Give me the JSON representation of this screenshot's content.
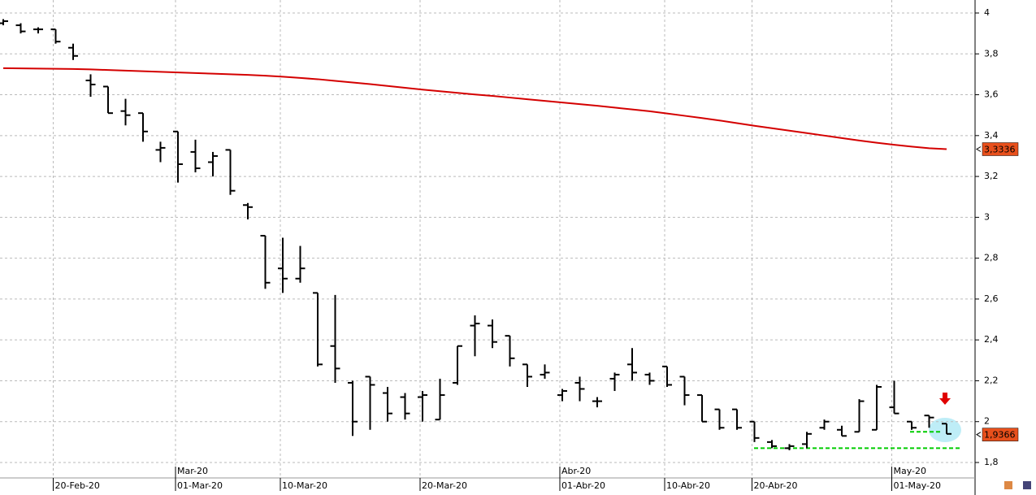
{
  "chart_data": {
    "type": "ohlc",
    "categories": [
      null,
      null,
      null,
      "20-Feb-20",
      null,
      null,
      null,
      null,
      null,
      null,
      "01-Mar-20",
      null,
      null,
      null,
      null,
      null,
      "10-Mar-20",
      null,
      null,
      null,
      null,
      null,
      null,
      null,
      "20-Mar-20",
      null,
      null,
      null,
      null,
      null,
      null,
      null,
      "01-Abr-20",
      null,
      null,
      null,
      null,
      null,
      "10-Abr-20",
      null,
      null,
      null,
      null,
      "20-Abr-20",
      null,
      null,
      null,
      null,
      null,
      null,
      null,
      "01-May-20",
      null,
      null,
      null
    ],
    "months": [
      null,
      null,
      null,
      null,
      null,
      null,
      null,
      null,
      null,
      null,
      "Mar-20",
      null,
      null,
      null,
      null,
      null,
      null,
      null,
      null,
      null,
      null,
      null,
      null,
      null,
      null,
      null,
      null,
      null,
      null,
      null,
      null,
      null,
      "Abr-20",
      null,
      null,
      null,
      null,
      null,
      null,
      null,
      null,
      null,
      null,
      null,
      null,
      null,
      null,
      null,
      null,
      null,
      null,
      "May-20",
      null,
      null,
      null
    ],
    "open": [
      3.95,
      3.94,
      3.92,
      3.92,
      3.83,
      3.67,
      3.64,
      3.52,
      3.51,
      3.33,
      3.42,
      3.32,
      3.27,
      3.33,
      3.06,
      2.91,
      2.75,
      2.7,
      2.63,
      2.37,
      2.19,
      2.22,
      2.14,
      2.12,
      2.12,
      2.01,
      2.19,
      2.47,
      2.47,
      2.42,
      2.28,
      2.23,
      2.13,
      2.19,
      2.1,
      2.21,
      2.28,
      2.23,
      2.27,
      2.22,
      2.13,
      2.06,
      2.06,
      2.0,
      1.9,
      1.87,
      1.89,
      1.97,
      1.96,
      1.95,
      1.96,
      2.07,
      2.0,
      2.03,
      1.99
    ],
    "high": [
      3.97,
      3.95,
      3.93,
      3.92,
      3.85,
      3.7,
      3.64,
      3.58,
      3.51,
      3.37,
      3.42,
      3.38,
      3.32,
      3.33,
      3.07,
      2.91,
      2.9,
      2.86,
      2.63,
      2.62,
      2.2,
      2.22,
      2.17,
      2.14,
      2.15,
      2.21,
      2.37,
      2.52,
      2.5,
      2.42,
      2.28,
      2.28,
      2.16,
      2.22,
      2.12,
      2.24,
      2.36,
      2.24,
      2.27,
      2.22,
      2.13,
      2.06,
      2.06,
      2.0,
      1.91,
      1.89,
      1.95,
      2.01,
      1.98,
      2.11,
      2.18,
      2.2,
      2.0,
      2.03,
      1.99
    ],
    "low": [
      3.94,
      3.9,
      3.9,
      3.85,
      3.77,
      3.59,
      3.51,
      3.45,
      3.37,
      3.27,
      3.17,
      3.22,
      3.2,
      3.11,
      2.99,
      2.65,
      2.63,
      2.68,
      2.27,
      2.19,
      1.93,
      1.96,
      2.0,
      2.01,
      2.0,
      2.01,
      2.18,
      2.32,
      2.36,
      2.27,
      2.17,
      2.21,
      2.1,
      2.1,
      2.07,
      2.15,
      2.2,
      2.18,
      2.17,
      2.08,
      2.0,
      1.96,
      1.96,
      1.9,
      1.87,
      1.86,
      1.87,
      1.96,
      1.93,
      1.95,
      1.96,
      2.04,
      1.96,
      1.97,
      1.94
    ],
    "close": [
      3.96,
      3.91,
      3.92,
      3.86,
      3.79,
      3.65,
      3.51,
      3.5,
      3.42,
      3.34,
      3.26,
      3.24,
      3.3,
      3.13,
      3.05,
      2.68,
      2.7,
      2.75,
      2.28,
      2.26,
      2.0,
      2.18,
      2.04,
      2.04,
      2.13,
      2.13,
      2.37,
      2.48,
      2.39,
      2.31,
      2.22,
      2.24,
      2.15,
      2.16,
      2.1,
      2.23,
      2.24,
      2.2,
      2.18,
      2.13,
      2.0,
      1.97,
      1.97,
      1.92,
      1.88,
      1.88,
      1.94,
      2.0,
      1.93,
      2.1,
      2.17,
      2.04,
      1.97,
      2.02,
      1.94
    ],
    "color": "#000000",
    "ma": {
      "color": "#d40000",
      "values": [
        3.73,
        3.729,
        3.728,
        3.727,
        3.726,
        3.724,
        3.721,
        3.718,
        3.715,
        3.712,
        3.709,
        3.706,
        3.703,
        3.7,
        3.697,
        3.693,
        3.688,
        3.682,
        3.676,
        3.668,
        3.66,
        3.652,
        3.643,
        3.634,
        3.625,
        3.617,
        3.609,
        3.601,
        3.594,
        3.586,
        3.578,
        3.57,
        3.562,
        3.554,
        3.546,
        3.537,
        3.528,
        3.519,
        3.508,
        3.497,
        3.486,
        3.474,
        3.461,
        3.448,
        3.436,
        3.424,
        3.412,
        3.4,
        3.388,
        3.376,
        3.365,
        3.355,
        3.346,
        3.338,
        3.3336
      ]
    },
    "last_labels": [
      {
        "value": 3.3336,
        "label": "3,3336"
      },
      {
        "value": 1.9366,
        "label": "1,9366"
      }
    ],
    "levels": {
      "color": "#00cc00",
      "values": [
        1.87,
        1.95
      ]
    },
    "ylim": [
      1.75,
      4.06
    ],
    "yticks": [
      {
        "value": 1.8,
        "label": "1,8"
      },
      2,
      {
        "value": 2.2,
        "label": "2,2"
      },
      {
        "value": 2.4,
        "label": "2,4"
      },
      {
        "value": 2.6,
        "label": "2,6"
      },
      {
        "value": 2.8,
        "label": "2,8"
      },
      3,
      {
        "value": 3.2,
        "label": "3,2"
      },
      {
        "value": 3.4,
        "label": "3,4"
      },
      {
        "value": 3.6,
        "label": "3,6"
      },
      {
        "value": 3.8,
        "label": "3,8"
      },
      4
    ],
    "grid": true
  }
}
